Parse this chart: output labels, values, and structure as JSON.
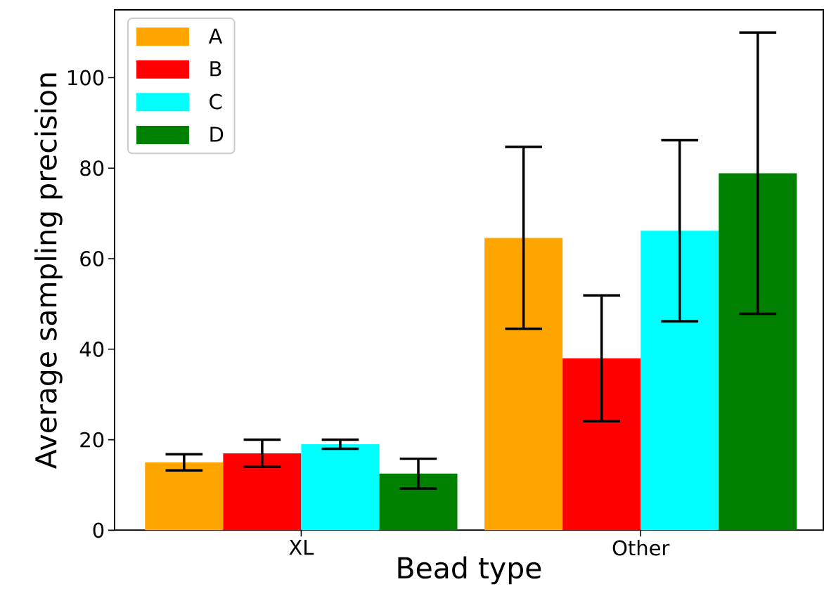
{
  "chart_data": {
    "type": "bar",
    "xlabel": "Bead type",
    "ylabel": "Average sampling precision",
    "categories": [
      "XL",
      "Other"
    ],
    "series": [
      {
        "name": "A",
        "color": "#ffa500",
        "values": [
          15.0,
          64.6
        ],
        "errors": [
          1.8,
          20.1
        ]
      },
      {
        "name": "B",
        "color": "#ff0000",
        "values": [
          17.0,
          38.0
        ],
        "errors": [
          3.0,
          13.9
        ]
      },
      {
        "name": "C",
        "color": "#00ffff",
        "values": [
          19.0,
          66.2
        ],
        "errors": [
          1.0,
          20.0
        ]
      },
      {
        "name": "D",
        "color": "#008000",
        "values": [
          12.5,
          78.9
        ],
        "errors": [
          3.3,
          31.1
        ]
      }
    ],
    "ylim": [
      0,
      115
    ],
    "yticks": [
      0,
      20,
      40,
      60,
      80,
      100
    ],
    "legend": "top left"
  }
}
